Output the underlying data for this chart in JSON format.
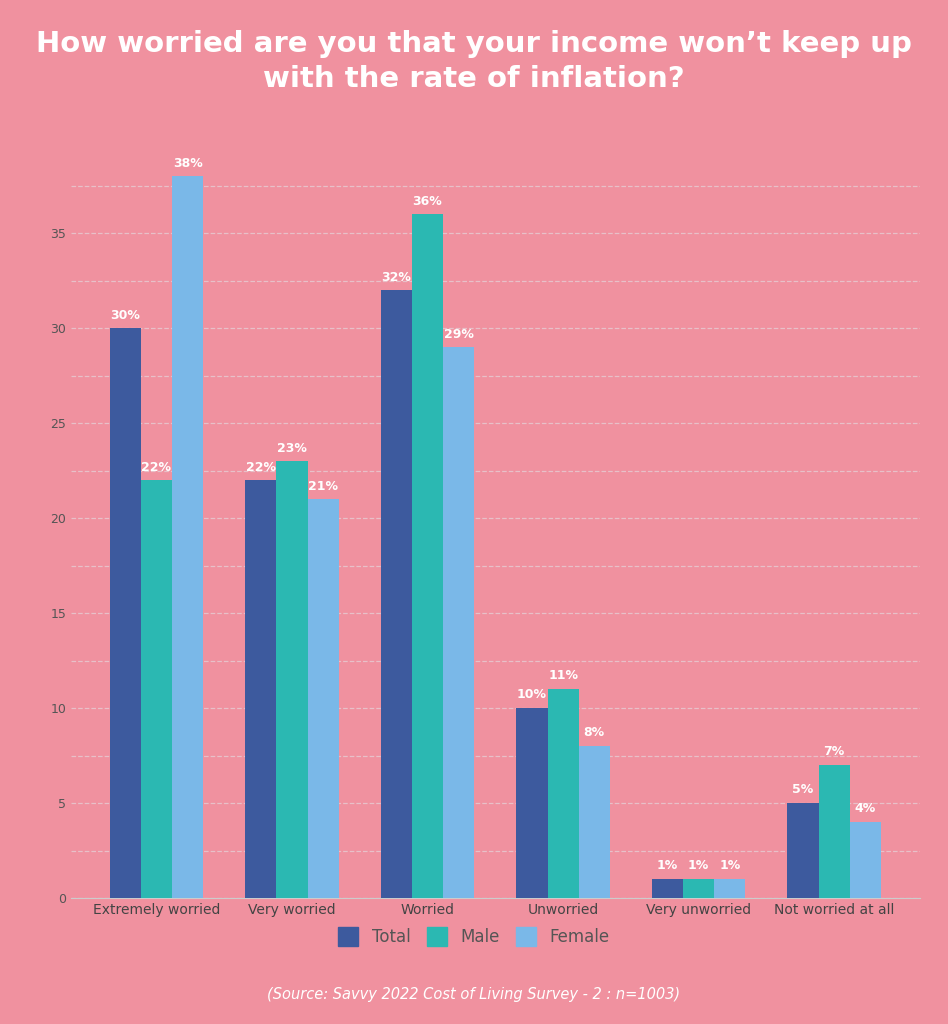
{
  "title": "How worried are you that your income won’t keep up\nwith the rate of inflation?",
  "source": "(Source: Savvy 2022 Cost of Living Survey - 2 : n=1003)",
  "categories": [
    "Extremely worried",
    "Very worried",
    "Worried",
    "Unworried",
    "Very unworried",
    "Not worried at all"
  ],
  "series": {
    "Total": [
      30,
      22,
      32,
      10,
      1,
      5
    ],
    "Male": [
      22,
      23,
      36,
      11,
      1,
      7
    ],
    "Female": [
      38,
      21,
      29,
      8,
      1,
      4
    ]
  },
  "colors": {
    "Total": "#3d5a9e",
    "Male": "#2bb8b2",
    "Female": "#7ab8e8"
  },
  "title_bg": "#d94f6a",
  "plot_bg": "#f0919f",
  "footer_bg": "#d94f6a",
  "title_color": "#ffffff",
  "footer_color": "#ffffff",
  "grid_color": "#e8c0c8",
  "bar_label_color": "#ffffff",
  "ylim": [
    0,
    40
  ],
  "yticks": [
    0,
    2.5,
    5,
    7.5,
    10,
    12.5,
    15,
    17.5,
    20,
    22.5,
    25,
    27.5,
    30,
    32.5,
    35,
    37.5
  ],
  "legend_labels": [
    "Total",
    "Male",
    "Female"
  ]
}
